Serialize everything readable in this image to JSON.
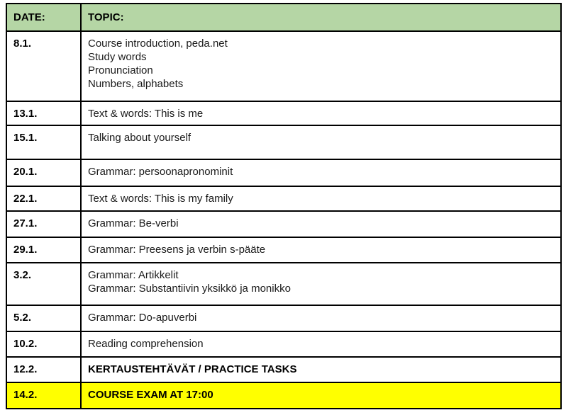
{
  "colors": {
    "header_green": "#b5d6a5",
    "exam_yellow": "#ffff00",
    "border_black": "#000000"
  },
  "table": {
    "headers": [
      "DATE:",
      "TOPIC:"
    ],
    "rows": [
      {
        "date": "8.1.",
        "topic": "Course introduction, peda.net\nStudy words\nPronunciation\nNumbers, alphabets"
      },
      {
        "date": "13.1.",
        "topic": "Text & words: This is me"
      },
      {
        "date": "15.1.",
        "topic": "Talking about yourself"
      },
      {
        "date": "20.1.",
        "topic": "Grammar: persoonapronominit"
      },
      {
        "date": "22.1.",
        "topic": "Text & words: This is my family"
      },
      {
        "date": "27.1.",
        "topic": "Grammar: Be-verbi"
      },
      {
        "date": "29.1.",
        "topic": "Grammar: Preesens ja verbin s-pääte"
      },
      {
        "date": "3.2.",
        "topic": "Grammar: Artikkelit\nGrammar: Substantiivin yksikkö ja monikko"
      },
      {
        "date": "5.2.",
        "topic": "Grammar: Do-apuverbi"
      },
      {
        "date": "10.2.",
        "topic": "Reading comprehension"
      },
      {
        "date": "12.2.",
        "topic": "KERTAUSTEHTÄVÄT / PRACTICE TASKS",
        "emphasis": "bold"
      },
      {
        "date": "14.2.",
        "topic": "COURSE EXAM AT 17:00",
        "emphasis": "bold",
        "highlight": "#ffff00"
      }
    ]
  }
}
